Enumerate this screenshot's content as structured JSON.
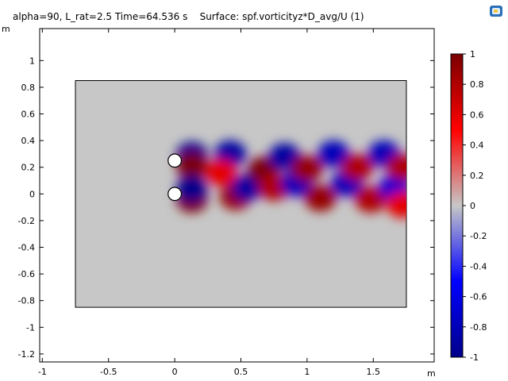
{
  "title": "alpha=90, L_rat=2.5 Time=64.536 s    Surface: spf.vorticityz*D_avg/U (1)",
  "icons": {
    "logo": "comsol-logo-icon"
  },
  "chart_data": {
    "type": "heatmap",
    "title": "alpha=90, L_rat=2.5 Time=64.536 s    Surface: spf.vorticityz*D_avg/U (1)",
    "xlabel": "m",
    "ylabel": "m",
    "xlim": [
      -1.02,
      1.96
    ],
    "ylim": [
      -1.26,
      1.24
    ],
    "x_ticks": [
      -1,
      -0.5,
      0,
      0.5,
      1,
      1.5
    ],
    "x_tick_labels": [
      "-1",
      "-0.5",
      "0",
      "0.5",
      "1",
      "1.5"
    ],
    "y_ticks": [
      1,
      0.8,
      0.6,
      0.4,
      0.2,
      0,
      -0.2,
      -0.4,
      -0.6,
      -0.8,
      -1,
      -1.2
    ],
    "y_tick_labels": [
      "1",
      "0.8",
      "0.6",
      "0.4",
      "0.2",
      "0",
      "-0.2",
      "-0.4",
      "-0.6",
      "-0.8",
      "-1",
      "-1.2"
    ],
    "domain": {
      "x": [
        -0.75,
        1.75
      ],
      "y": [
        -0.85,
        0.85
      ]
    },
    "cylinders": [
      {
        "x": 0.0,
        "y": 0.25,
        "r": 0.05
      },
      {
        "x": 0.0,
        "y": 0.0,
        "r": 0.05
      }
    ],
    "colorbar": {
      "min": -1,
      "max": 1,
      "ticks": [
        1,
        0.8,
        0.6,
        0.4,
        0.2,
        0,
        -0.2,
        -0.4,
        -0.6,
        -0.8,
        -1
      ],
      "tick_labels": [
        "1",
        "0.8",
        "0.6",
        "0.4",
        "0.2",
        "0",
        "-0.2",
        "-0.4",
        "-0.6",
        "-0.8",
        "-1"
      ],
      "colors": [
        "#00008a",
        "#0000ff",
        "#c7c7c7",
        "#ff0000",
        "#7a0000"
      ]
    },
    "vortices": [
      {
        "x": 0.13,
        "y": 0.29,
        "value": -1
      },
      {
        "x": 0.13,
        "y": -0.04,
        "value": 1
      },
      {
        "x": 0.13,
        "y": 0.21,
        "value": 1
      },
      {
        "x": 0.13,
        "y": 0.04,
        "value": -1
      },
      {
        "x": 0.42,
        "y": 0.3,
        "value": -0.9
      },
      {
        "x": 0.46,
        "y": -0.02,
        "value": 0.9
      },
      {
        "x": 0.35,
        "y": 0.16,
        "value": 0.6
      },
      {
        "x": 0.55,
        "y": 0.05,
        "value": -0.9
      },
      {
        "x": 0.67,
        "y": 0.18,
        "value": 1
      },
      {
        "x": 0.75,
        "y": 0.05,
        "value": 0.8
      },
      {
        "x": 0.83,
        "y": 0.28,
        "value": -0.9
      },
      {
        "x": 0.92,
        "y": 0.08,
        "value": -0.8
      },
      {
        "x": 1.0,
        "y": 0.19,
        "value": 0.9
      },
      {
        "x": 1.1,
        "y": -0.03,
        "value": 0.9
      },
      {
        "x": 1.2,
        "y": 0.3,
        "value": -0.8
      },
      {
        "x": 1.3,
        "y": 0.08,
        "value": -0.8
      },
      {
        "x": 1.38,
        "y": 0.2,
        "value": 0.8
      },
      {
        "x": 1.48,
        "y": -0.04,
        "value": 0.8
      },
      {
        "x": 1.58,
        "y": 0.3,
        "value": -0.8
      },
      {
        "x": 1.66,
        "y": 0.05,
        "value": -0.7
      },
      {
        "x": 1.72,
        "y": 0.2,
        "value": 0.8
      },
      {
        "x": 1.72,
        "y": -0.08,
        "value": 0.6
      }
    ]
  }
}
